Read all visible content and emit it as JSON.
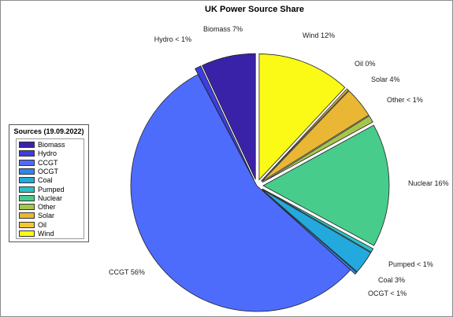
{
  "chart_data": {
    "type": "pie",
    "title": "UK Power Source Share",
    "legend": {
      "title": "Sources (19.09.2022)",
      "placement": "left",
      "entries": [
        "Biomass",
        "Hydro",
        "CCGT",
        "OCGT",
        "Coal",
        "Pumped",
        "Nuclear",
        "Other",
        "Solar",
        "Oil",
        "Wind"
      ]
    },
    "slices": [
      {
        "name": "Wind",
        "value": 12,
        "label": "Wind 12%",
        "color": "#FAFA16",
        "exploded": true
      },
      {
        "name": "Oil",
        "value": 0,
        "label": "Oil 0%",
        "color": "#F6C637",
        "exploded": true
      },
      {
        "name": "Solar",
        "value": 4,
        "label": "Solar 4%",
        "color": "#E9B734",
        "exploded": true
      },
      {
        "name": "Other",
        "value": 0.9,
        "label": "Other < 1%",
        "color": "#A5C64A",
        "exploded": true
      },
      {
        "name": "Nuclear",
        "value": 16,
        "label": "Nuclear 16%",
        "color": "#48CC8C",
        "exploded": true
      },
      {
        "name": "Pumped",
        "value": 0.5,
        "label": "Pumped < 1%",
        "color": "#2AC1C7",
        "exploded": true
      },
      {
        "name": "Coal",
        "value": 3,
        "label": "Coal 3%",
        "color": "#23A9DD",
        "exploded": true
      },
      {
        "name": "OCGT",
        "value": 0.3,
        "label": "OCGT < 1%",
        "color": "#2F86EE",
        "exploded": true
      },
      {
        "name": "CCGT",
        "value": 56,
        "label": "CCGT 56%",
        "color": "#4E6CFB",
        "exploded": false
      },
      {
        "name": "Hydro",
        "value": 0.8,
        "label": "Hydro < 1%",
        "color": "#3D3DE0",
        "exploded": true
      },
      {
        "name": "Biomass",
        "value": 7,
        "label": "Biomass 7%",
        "color": "#3A22A8",
        "exploded": true
      }
    ],
    "legend_colors": {
      "Biomass": "#3A22A8",
      "Hydro": "#3D3DE0",
      "CCGT": "#4E6CFB",
      "OCGT": "#2F86EE",
      "Coal": "#23A9DD",
      "Pumped": "#2AC1C7",
      "Nuclear": "#48CC8C",
      "Other": "#A5C64A",
      "Solar": "#E9B734",
      "Oil": "#F6C637",
      "Wind": "#FAFA16"
    }
  }
}
